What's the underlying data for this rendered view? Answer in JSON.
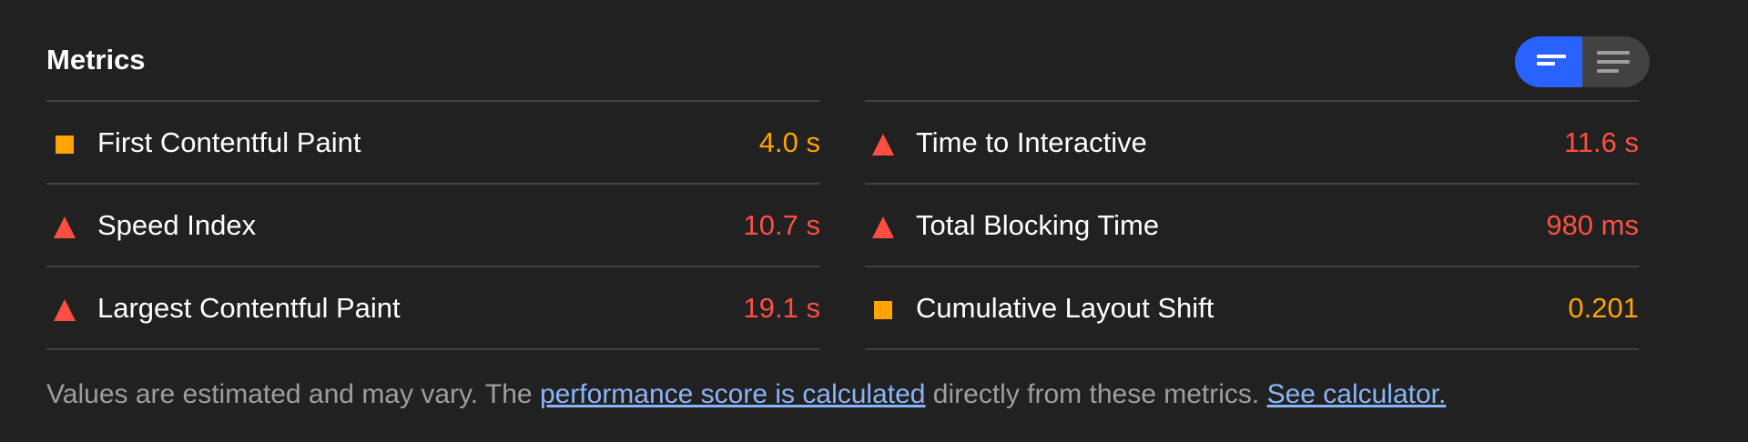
{
  "header": {
    "title": "Metrics"
  },
  "toggle": {
    "active": "summary"
  },
  "colors": {
    "average": "#ffa400",
    "fail": "#ff4e42",
    "accent": "#2962ff",
    "link": "#8ab4f8"
  },
  "metrics": {
    "left": [
      {
        "icon": "square",
        "label": "First Contentful Paint",
        "value": "4.0 s",
        "rating": "average"
      },
      {
        "icon": "triangle",
        "label": "Speed Index",
        "value": "10.7 s",
        "rating": "fail"
      },
      {
        "icon": "triangle",
        "label": "Largest Contentful Paint",
        "value": "19.1 s",
        "rating": "fail"
      }
    ],
    "right": [
      {
        "icon": "triangle",
        "label": "Time to Interactive",
        "value": "11.6 s",
        "rating": "fail"
      },
      {
        "icon": "triangle",
        "label": "Total Blocking Time",
        "value": "980 ms",
        "rating": "fail"
      },
      {
        "icon": "square",
        "label": "Cumulative Layout Shift",
        "value": "0.201",
        "rating": "average"
      }
    ]
  },
  "note": {
    "text1": "Values are estimated and may vary. The ",
    "link1": "performance score is calculated",
    "text2": " directly from these metrics. ",
    "link2": "See calculator."
  }
}
